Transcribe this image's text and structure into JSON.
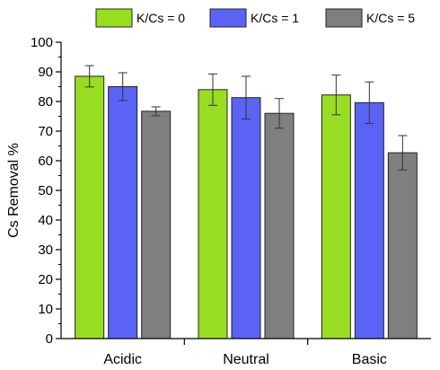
{
  "chart_data": {
    "type": "bar",
    "categories": [
      "Acidic",
      "Neutral",
      "Basic"
    ],
    "series": [
      {
        "name": "K/Cs = 0",
        "color": "#99dd22",
        "values": [
          88.5,
          84.0,
          82.2
        ],
        "errors": [
          3.6,
          5.3,
          6.7
        ]
      },
      {
        "name": "K/Cs = 1",
        "color": "#5b63f5",
        "values": [
          85.0,
          81.3,
          79.6
        ],
        "errors": [
          4.7,
          7.2,
          7.0
        ]
      },
      {
        "name": "K/Cs = 5",
        "color": "#7f7f7f",
        "values": [
          76.7,
          76.0,
          62.7
        ],
        "errors": [
          1.5,
          5.0,
          5.8
        ]
      }
    ],
    "xlabel": "",
    "ylabel": "Cs Removal %",
    "ylim": [
      0,
      100
    ],
    "yticks": [
      0,
      10,
      20,
      30,
      40,
      50,
      60,
      70,
      80,
      90,
      100
    ],
    "legend_position": "top",
    "grid": false
  }
}
